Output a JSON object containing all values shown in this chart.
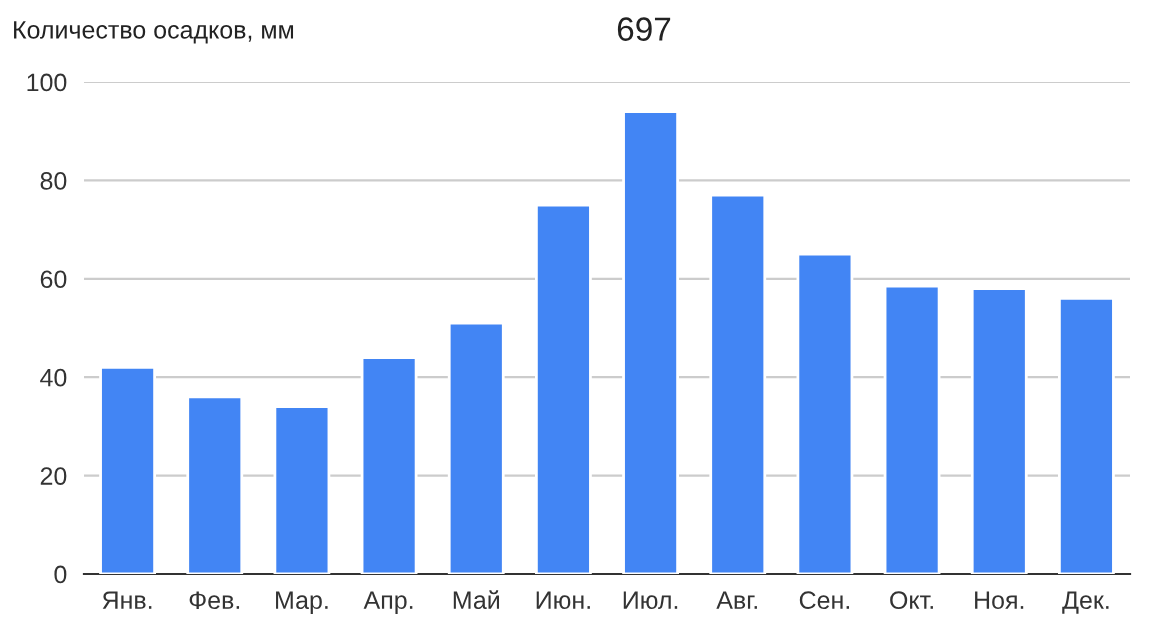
{
  "chart_data": {
    "type": "bar",
    "title": "697",
    "ylabel": "Количество осадков, мм",
    "categories": [
      "Янв.",
      "Фев.",
      "Мар.",
      "Апр.",
      "Май",
      "Июн.",
      "Июл.",
      "Авг.",
      "Сен.",
      "Окт.",
      "Ноя.",
      "Дек."
    ],
    "values": [
      42,
      36,
      34,
      44,
      51,
      75,
      94,
      77,
      65,
      58.5,
      58,
      56
    ],
    "color": "#4285f4",
    "ylim": [
      0,
      100
    ],
    "yticks": [
      0,
      20,
      40,
      60,
      80,
      100
    ],
    "grid": "y"
  }
}
